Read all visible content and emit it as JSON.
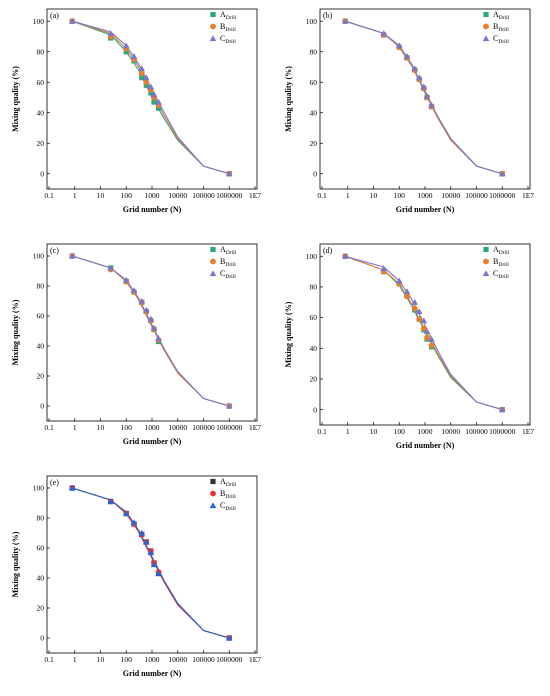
{
  "chart_data": [
    {
      "type": "line",
      "panel_label": "(a)",
      "xlabel": "Grid number (N)",
      "ylabel": "Mixing quality (%)",
      "x_scale": "log",
      "x_ticks": [
        0.1,
        1,
        10,
        100,
        1000,
        10000,
        100000,
        1000000,
        10000000
      ],
      "x_tick_labels": [
        "0.1",
        "1",
        "10",
        "100",
        "1000",
        "10000",
        "100000",
        "1000000",
        "1E7"
      ],
      "y_ticks": [
        0,
        20,
        40,
        60,
        80,
        100
      ],
      "ylim": [
        -10,
        108
      ],
      "legend_position": "top-right",
      "marker_style": "pastel",
      "series": [
        {
          "name": "A",
          "name_sub": "Drill",
          "color": "#2ea67a",
          "marker": "square",
          "x": [
            0.8,
            25,
            100,
            200,
            400,
            600,
            900,
            1200,
            1800,
            1000000
          ],
          "y": [
            100,
            89,
            80,
            74,
            63,
            58,
            53,
            47,
            43,
            0
          ],
          "curve_x": [
            0.8,
            25,
            100,
            300,
            1000,
            3000,
            10000,
            100000,
            1000000
          ],
          "curve_y": [
            100,
            91,
            80,
            68,
            50,
            36,
            22,
            5,
            0
          ]
        },
        {
          "name": "B",
          "name_sub": "Drill",
          "color": "#e87d2a",
          "marker": "circle",
          "x": [
            0.8,
            25,
            100,
            200,
            400,
            600,
            900,
            1200,
            1800,
            1000000
          ],
          "y": [
            100,
            90,
            82,
            75,
            66,
            60,
            55,
            50,
            45,
            0
          ],
          "curve_x": [
            0.8,
            25,
            100,
            300,
            1000,
            3000,
            10000,
            100000,
            1000000
          ],
          "curve_y": [
            100,
            92,
            82,
            70,
            53,
            38,
            23,
            5,
            0
          ]
        },
        {
          "name": "C",
          "name_sub": "Drill",
          "color": "#7b74d1",
          "marker": "triangle",
          "x": [
            0.8,
            25,
            100,
            200,
            400,
            600,
            900,
            1200,
            1800,
            1000000
          ],
          "y": [
            100,
            92,
            84,
            77,
            69,
            63,
            57,
            52,
            47,
            0
          ],
          "curve_x": [
            0.8,
            25,
            100,
            300,
            1000,
            3000,
            10000,
            100000,
            1000000
          ],
          "curve_y": [
            100,
            93,
            84,
            72,
            55,
            40,
            24,
            5,
            0
          ]
        }
      ]
    },
    {
      "type": "line",
      "panel_label": "(b)",
      "xlabel": "Grid number (N)",
      "ylabel": "Mixing quality (%)",
      "x_scale": "log",
      "x_ticks": [
        0.1,
        1,
        10,
        100,
        1000,
        10000,
        100000,
        1000000,
        10000000
      ],
      "x_tick_labels": [
        "0.1",
        "1",
        "10",
        "100",
        "1000",
        "10000",
        "100000",
        "1000000",
        "1E7"
      ],
      "y_ticks": [
        0,
        20,
        40,
        60,
        80,
        100
      ],
      "ylim": [
        -10,
        108
      ],
      "legend_position": "top-right",
      "marker_style": "pastel",
      "series": [
        {
          "name": "A",
          "name_sub": "Drill",
          "color": "#2ea67a",
          "marker": "square",
          "x": [
            0.8,
            25,
            100,
            200,
            400,
            600,
            900,
            1200,
            1800,
            1000000
          ],
          "y": [
            100,
            91,
            83,
            76,
            68,
            62,
            56,
            50,
            44,
            0
          ],
          "curve_x": [
            0.8,
            25,
            100,
            300,
            1000,
            3000,
            10000,
            100000,
            1000000
          ],
          "curve_y": [
            100,
            92,
            83,
            71,
            54,
            38,
            23,
            5,
            0
          ]
        },
        {
          "name": "B",
          "name_sub": "Drill",
          "color": "#e87d2a",
          "marker": "circle",
          "x": [
            0.8,
            25,
            100,
            200,
            400,
            600,
            900,
            1200,
            1800,
            1000000
          ],
          "y": [
            100,
            91,
            83,
            76,
            68,
            62,
            56,
            50,
            44,
            0
          ],
          "curve_x": [
            0.8,
            25,
            100,
            300,
            1000,
            3000,
            10000,
            100000,
            1000000
          ],
          "curve_y": [
            100,
            92,
            83,
            71,
            53,
            37,
            22,
            5,
            0
          ]
        },
        {
          "name": "C",
          "name_sub": "Drill",
          "color": "#7b74d1",
          "marker": "triangle",
          "x": [
            0.8,
            25,
            100,
            200,
            400,
            600,
            900,
            1200,
            1800,
            1000000
          ],
          "y": [
            100,
            92,
            84,
            77,
            69,
            63,
            57,
            51,
            45,
            0
          ],
          "curve_x": [
            0.8,
            25,
            100,
            300,
            1000,
            3000,
            10000,
            100000,
            1000000
          ],
          "curve_y": [
            100,
            92,
            84,
            72,
            54,
            38,
            23,
            5,
            0
          ]
        }
      ]
    },
    {
      "type": "line",
      "panel_label": "(c)",
      "xlabel": "Grid number (N)",
      "ylabel": "Mixing quality (%)",
      "x_scale": "log",
      "x_ticks": [
        0.1,
        1,
        10,
        100,
        1000,
        10000,
        100000,
        1000000,
        10000000
      ],
      "x_tick_labels": [
        "0.1",
        "1",
        "10",
        "100",
        "1000",
        "10000",
        "100000",
        "1000000",
        "1E7"
      ],
      "y_ticks": [
        0,
        20,
        40,
        60,
        80,
        100
      ],
      "ylim": [
        -10,
        108
      ],
      "legend_position": "top-right",
      "marker_style": "pastel",
      "series": [
        {
          "name": "A",
          "name_sub": "Drill",
          "color": "#2ea67a",
          "marker": "square",
          "x": [
            0.8,
            25,
            100,
            200,
            400,
            600,
            900,
            1200,
            1800,
            1000000
          ],
          "y": [
            100,
            92,
            83,
            76,
            69,
            63,
            57,
            51,
            43,
            0
          ],
          "curve_x": [
            0.8,
            25,
            100,
            300,
            1000,
            3000,
            10000,
            100000,
            1000000
          ],
          "curve_y": [
            100,
            92,
            83,
            71,
            53,
            37,
            22,
            5,
            0
          ]
        },
        {
          "name": "B",
          "name_sub": "Drill",
          "color": "#e87d2a",
          "marker": "circle",
          "x": [
            0.8,
            25,
            100,
            200,
            400,
            600,
            900,
            1200,
            1800,
            1000000
          ],
          "y": [
            100,
            91,
            83,
            76,
            69,
            63,
            57,
            51,
            44,
            0
          ],
          "curve_x": [
            0.8,
            25,
            100,
            300,
            1000,
            3000,
            10000,
            100000,
            1000000
          ],
          "curve_y": [
            100,
            92,
            83,
            71,
            53,
            37,
            22,
            5,
            0
          ]
        },
        {
          "name": "C",
          "name_sub": "Drill",
          "color": "#7b74d1",
          "marker": "triangle",
          "x": [
            0.8,
            25,
            100,
            200,
            400,
            600,
            900,
            1200,
            1800,
            1000000
          ],
          "y": [
            100,
            92,
            84,
            77,
            70,
            64,
            58,
            52,
            45,
            0
          ],
          "curve_x": [
            0.8,
            25,
            100,
            300,
            1000,
            3000,
            10000,
            100000,
            1000000
          ],
          "curve_y": [
            100,
            92,
            84,
            72,
            54,
            38,
            23,
            5,
            0
          ]
        }
      ]
    },
    {
      "type": "line",
      "panel_label": "(d)",
      "xlabel": "Grid number (N)",
      "ylabel": "Mixing quality (%)",
      "x_scale": "log",
      "x_ticks": [
        0.1,
        1,
        10,
        100,
        1000,
        10000,
        100000,
        1000000,
        10000000
      ],
      "x_tick_labels": [
        "0.1",
        "1",
        "10",
        "100",
        "1000",
        "10000",
        "100000",
        "1000000",
        "1E7"
      ],
      "y_ticks": [
        0,
        20,
        40,
        60,
        80,
        100
      ],
      "ylim": [
        -10,
        108
      ],
      "legend_position": "top-right",
      "marker_style": "pastel",
      "series": [
        {
          "name": "A",
          "name_sub": "Drill",
          "color": "#2ea67a",
          "marker": "square",
          "x": [
            0.8,
            25,
            100,
            200,
            400,
            600,
            900,
            1200,
            1800,
            1000000
          ],
          "y": [
            100,
            90,
            82,
            74,
            65,
            59,
            52,
            46,
            41,
            0
          ],
          "curve_x": [
            0.8,
            25,
            100,
            300,
            1000,
            3000,
            10000,
            100000,
            1000000
          ],
          "curve_y": [
            100,
            91,
            81,
            68,
            51,
            36,
            21,
            5,
            0
          ]
        },
        {
          "name": "B",
          "name_sub": "Drill",
          "color": "#e87d2a",
          "marker": "circle",
          "x": [
            0.8,
            25,
            100,
            200,
            400,
            600,
            900,
            1200,
            1800,
            1000000
          ],
          "y": [
            100,
            90,
            82,
            74,
            66,
            59,
            53,
            47,
            42,
            0
          ],
          "curve_x": [
            0.8,
            25,
            100,
            300,
            1000,
            3000,
            10000,
            100000,
            1000000
          ],
          "curve_y": [
            100,
            91,
            82,
            69,
            52,
            37,
            22,
            5,
            0
          ]
        },
        {
          "name": "C",
          "name_sub": "Drill",
          "color": "#7b74d1",
          "marker": "triangle",
          "x": [
            0.8,
            25,
            100,
            200,
            400,
            600,
            900,
            1200,
            1800,
            1000000
          ],
          "y": [
            100,
            92,
            84,
            77,
            70,
            64,
            58,
            51,
            46,
            0
          ],
          "curve_x": [
            0.8,
            25,
            100,
            300,
            1000,
            3000,
            10000,
            100000,
            1000000
          ],
          "curve_y": [
            100,
            93,
            84,
            72,
            55,
            39,
            23,
            5,
            0
          ]
        }
      ]
    },
    {
      "type": "line",
      "panel_label": "(e)",
      "xlabel": "Grid number (N)",
      "ylabel": "Mixing quality (%)",
      "x_scale": "log",
      "x_ticks": [
        0.1,
        1,
        10,
        100,
        1000,
        10000,
        100000,
        1000000,
        10000000
      ],
      "x_tick_labels": [
        "0.1",
        "1",
        "10",
        "100",
        "1000",
        "10000",
        "100000",
        "1000000",
        "1E7"
      ],
      "y_ticks": [
        0,
        20,
        40,
        60,
        80,
        100
      ],
      "ylim": [
        -10,
        108
      ],
      "legend_position": "top-right",
      "marker_style": "saturated",
      "series": [
        {
          "name": "A",
          "name_sub": "Drill",
          "color": "#333333",
          "marker": "square",
          "x": [
            0.8,
            25,
            100,
            200,
            400,
            600,
            900,
            1200,
            1800,
            1000000
          ],
          "y": [
            100,
            91,
            83,
            76,
            69,
            64,
            58,
            50,
            43,
            0
          ],
          "curve_x": [
            0.8,
            25,
            100,
            300,
            1000,
            3000,
            10000,
            100000,
            1000000
          ],
          "curve_y": [
            100,
            92,
            83,
            71,
            54,
            38,
            23,
            5,
            0
          ]
        },
        {
          "name": "B",
          "name_sub": "Drill",
          "color": "#e8353a",
          "marker": "circle",
          "x": [
            0.8,
            25,
            100,
            200,
            400,
            600,
            900,
            1200,
            1800,
            1000000
          ],
          "y": [
            100,
            91,
            83,
            76,
            69,
            64,
            58,
            50,
            44,
            0
          ],
          "curve_x": [
            0.8,
            25,
            100,
            300,
            1000,
            3000,
            10000,
            100000,
            1000000
          ],
          "curve_y": [
            100,
            92,
            83,
            71,
            53,
            37,
            22,
            5,
            0
          ]
        },
        {
          "name": "C",
          "name_sub": "Drill",
          "color": "#2468d8",
          "marker": "triangle",
          "x": [
            0.8,
            25,
            100,
            200,
            400,
            600,
            900,
            1200,
            1800,
            1000000
          ],
          "y": [
            100,
            91,
            83,
            77,
            70,
            64,
            57,
            49,
            43,
            0
          ],
          "curve_x": [
            0.8,
            25,
            100,
            300,
            1000,
            3000,
            10000,
            100000,
            1000000
          ],
          "curve_y": [
            100,
            92,
            84,
            72,
            54,
            38,
            23,
            5,
            0
          ]
        }
      ]
    }
  ]
}
